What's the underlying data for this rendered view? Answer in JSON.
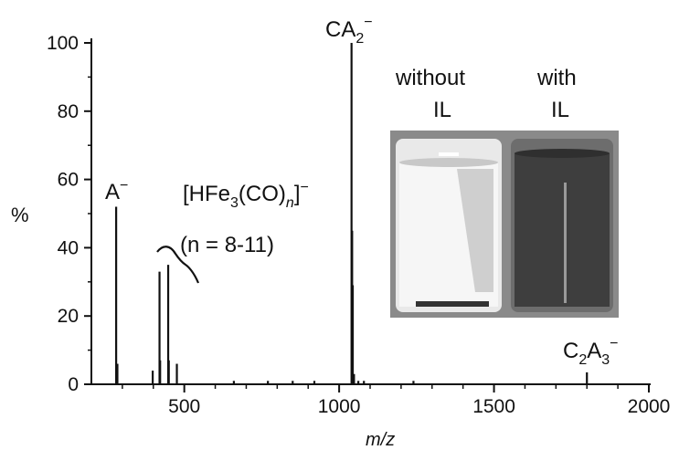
{
  "chart_data": {
    "type": "bar",
    "title": "",
    "xlabel": "m/z",
    "ylabel": "%",
    "xlim": [
      200,
      2000
    ],
    "ylim": [
      0,
      100
    ],
    "x_ticks": [
      500,
      1000,
      1500,
      2000
    ],
    "y_ticks": [
      0,
      20,
      40,
      60,
      80,
      100
    ],
    "grid": false,
    "peaks": [
      {
        "x": 280,
        "y": 52
      },
      {
        "x": 284,
        "y": 6
      },
      {
        "x": 398,
        "y": 4
      },
      {
        "x": 420,
        "y": 33
      },
      {
        "x": 422,
        "y": 7
      },
      {
        "x": 448,
        "y": 35
      },
      {
        "x": 450,
        "y": 7
      },
      {
        "x": 476,
        "y": 6
      },
      {
        "x": 660,
        "y": 1
      },
      {
        "x": 770,
        "y": 1
      },
      {
        "x": 850,
        "y": 1
      },
      {
        "x": 920,
        "y": 1
      },
      {
        "x": 1040,
        "y": 100
      },
      {
        "x": 1042,
        "y": 45
      },
      {
        "x": 1044,
        "y": 29
      },
      {
        "x": 1048,
        "y": 3
      },
      {
        "x": 1062,
        "y": 1
      },
      {
        "x": 1080,
        "y": 1
      },
      {
        "x": 1240,
        "y": 1
      },
      {
        "x": 1800,
        "y": 3.5
      }
    ],
    "annotations": {
      "a_minus": {
        "base": "A",
        "sup": "−"
      },
      "ca2_minus": {
        "base": "CA",
        "sub": "2",
        "sup": "−"
      },
      "c2a3_minus": {
        "p1": "C",
        "s1": "2",
        "p2": "A",
        "s2": "3",
        "sup": "−"
      },
      "hfe_cluster": {
        "open": "[HFe",
        "sub1": "3",
        "mid": "(CO)",
        "sub2": "n",
        "close": "]",
        "sup": "−"
      },
      "n_range": "(n = 8-11)"
    },
    "inset": {
      "without_line1": "without",
      "without_line2": "IL",
      "with_line1": "with",
      "with_line2": "IL"
    }
  }
}
